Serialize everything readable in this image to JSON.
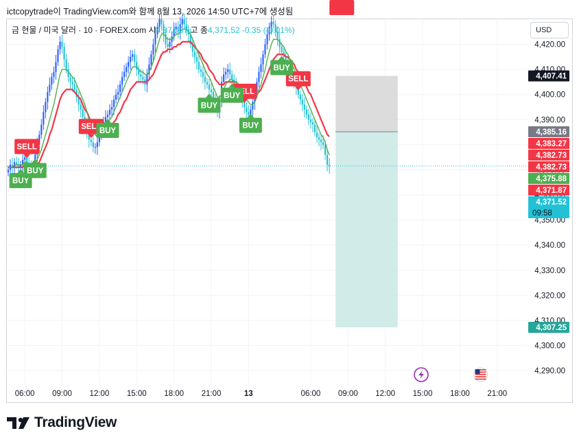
{
  "caption": "ictcopytrade이 TradingView.com와 함께 8월 13, 2026 14:50 UTC+7에 생성됨",
  "symbol": {
    "name": "금 현물 / 미국 달러 · 10 · FOREX.com",
    "open_label": "시",
    "open_value": "4,371.87",
    "high_label": "고",
    "close_label": "종",
    "close_value": "4,371.52",
    "change": "-0.35 (-0.01%)"
  },
  "currency_button": "USD",
  "branding": {
    "wordmark": "TradingView",
    "logo_icon": "tradingview-logo-icon"
  },
  "icons": {
    "flash": "lightning-icon",
    "flag": "us-flag-icon"
  },
  "colors": {
    "up": "#2962ff",
    "down": "#22c1d6",
    "ema_fast": "#4caf50",
    "ema_slow": "#f23645",
    "buy": "#4caf50",
    "sell": "#f23645",
    "stop_zone": "#d6d6d6",
    "target_zone": "#d0ebe8"
  },
  "chart_data": {
    "type": "candlestick",
    "ylim": [
      4284,
      4430
    ],
    "y_ticks": [
      "4,290.00",
      "4,300.00",
      "4,310.00",
      "4,320.00",
      "4,330.00",
      "4,340.00",
      "4,350.00",
      "4,360.00",
      "4,370.00",
      "4,380.00",
      "4,390.00",
      "4,400.00",
      "4,410.00",
      "4,420.00"
    ],
    "x_ticks": [
      {
        "label": "06:00",
        "bar": 8
      },
      {
        "label": "09:00",
        "bar": 26
      },
      {
        "label": "12:00",
        "bar": 44
      },
      {
        "label": "15:00",
        "bar": 62
      },
      {
        "label": "18:00",
        "bar": 80
      },
      {
        "label": "21:00",
        "bar": 98
      },
      {
        "label": "13",
        "bar": 116
      },
      {
        "label": "06:00",
        "bar": 146
      },
      {
        "label": "09:00",
        "bar": 164
      },
      {
        "label": "12:00",
        "bar": 182
      },
      {
        "label": "15:00",
        "bar": 200
      },
      {
        "label": "18:00",
        "bar": 218
      },
      {
        "label": "21:00",
        "bar": 236
      }
    ],
    "closes": [
      4370,
      4372,
      4371,
      4373,
      4372,
      4371,
      4372,
      4374,
      4375,
      4373,
      4371,
      4370,
      4372,
      4376,
      4380,
      4384,
      4388,
      4393,
      4397,
      4401,
      4404,
      4407,
      4409,
      4413,
      4418,
      4421,
      4419,
      4414,
      4410,
      4407,
      4405,
      4404,
      4402,
      4399,
      4396,
      4394,
      4391,
      4388,
      4385,
      4382,
      4381,
      4379,
      4379,
      4381,
      4384,
      4386,
      4389,
      4391,
      4392,
      4394,
      4395,
      4398,
      4400,
      4401,
      4404,
      4407,
      4409,
      4411,
      4413,
      4415,
      4416,
      4413,
      4410,
      4408,
      4407,
      4406,
      4404,
      4408,
      4412,
      4416,
      4420,
      4424,
      4427,
      4430,
      4428,
      4424,
      4420,
      4419,
      4421,
      4423,
      4426,
      4427,
      4425,
      4428,
      4430,
      4428,
      4426,
      4424,
      4420,
      4417,
      4415,
      4413,
      4410,
      4409,
      4407,
      4405,
      4404,
      4402,
      4401,
      4398,
      4395,
      4393,
      4398,
      4405,
      4408,
      4409,
      4410,
      4408,
      4406,
      4404,
      4403,
      4401,
      4400,
      4397,
      4395,
      4393,
      4392,
      4394,
      4397,
      4401,
      4405,
      4409,
      4412,
      4416,
      4420,
      4424,
      4427,
      4429,
      4428,
      4425,
      4422,
      4419,
      4417,
      4415,
      4413,
      4411,
      4409,
      4407,
      4405,
      4403,
      4400,
      4398,
      4396,
      4394,
      4392,
      4390,
      4389,
      4388,
      4385,
      4383,
      4382,
      4381,
      4380,
      4376,
      4372,
      4371.52
    ],
    "ema_fast": [
      4371,
      4371,
      4371,
      4372,
      4372,
      4372,
      4372,
      4372,
      4373,
      4373,
      4372,
      4372,
      4372,
      4373,
      4374,
      4376,
      4378,
      4381,
      4384,
      4387,
      4390,
      4393,
      4396,
      4400,
      4404,
      4408,
      4410,
      4410,
      4410,
      4409,
      4408,
      4407,
      4406,
      4404,
      4402,
      4400,
      4398,
      4396,
      4393,
      4390,
      4388,
      4386,
      4384,
      4383,
      4383,
      4384,
      4385,
      4387,
      4388,
      4390,
      4391,
      4393,
      4395,
      4397,
      4399,
      4401,
      4403,
      4405,
      4407,
      4409,
      4411,
      4411,
      4411,
      4410,
      4409,
      4409,
      4408,
      4408,
      4409,
      4411,
      4413,
      4416,
      4419,
      4422,
      4424,
      4424,
      4423,
      4422,
      4422,
      4422,
      4423,
      4424,
      4424,
      4425,
      4426,
      4426,
      4426,
      4425,
      4424,
      4422,
      4420,
      4418,
      4416,
      4414,
      4412,
      4410,
      4408,
      4407,
      4405,
      4403,
      4401,
      4399,
      4399,
      4400,
      4402,
      4404,
      4405,
      4406,
      4406,
      4405,
      4405,
      4404,
      4403,
      4401,
      4400,
      4398,
      4397,
      4396,
      4396,
      4397,
      4399,
      4402,
      4404,
      4407,
      4410,
      4414,
      4417,
      4420,
      4422,
      4422,
      4422,
      4421,
      4420,
      4419,
      4417,
      4416,
      4414,
      4412,
      4410,
      4408,
      4406,
      4404,
      4402,
      4400,
      4398,
      4396,
      4394,
      4392,
      4390,
      4388,
      4386,
      4384,
      4383,
      4381,
      4378,
      4375.88
    ],
    "ema_slow": [
      4371,
      4371,
      4371,
      4371,
      4371,
      4371,
      4371,
      4371,
      4372,
      4372,
      4372,
      4371,
      4371,
      4372,
      4372,
      4373,
      4375,
      4377,
      4379,
      4381,
      4384,
      4386,
      4389,
      4392,
      4395,
      4398,
      4400,
      4401,
      4402,
      4402,
      4402,
      4402,
      4401,
      4400,
      4399,
      4398,
      4396,
      4394,
      4393,
      4391,
      4389,
      4387,
      4386,
      4385,
      4384,
      4384,
      4384,
      4385,
      4386,
      4387,
      4388,
      4389,
      4390,
      4392,
      4393,
      4395,
      4397,
      4398,
      4400,
      4402,
      4403,
      4404,
      4405,
      4405,
      4405,
      4405,
      4405,
      4405,
      4406,
      4407,
      4408,
      4410,
      4412,
      4414,
      4416,
      4417,
      4417,
      4418,
      4418,
      4418,
      4419,
      4419,
      4420,
      4420,
      4421,
      4421,
      4421,
      4421,
      4421,
      4420,
      4419,
      4418,
      4417,
      4416,
      4414,
      4413,
      4412,
      4410,
      4409,
      4408,
      4406,
      4405,
      4404,
      4404,
      4404,
      4405,
      4405,
      4405,
      4405,
      4405,
      4405,
      4404,
      4404,
      4403,
      4402,
      4401,
      4400,
      4400,
      4399,
      4399,
      4400,
      4401,
      4402,
      4404,
      4406,
      4408,
      4410,
      4412,
      4414,
      4415,
      4416,
      4416,
      4416,
      4416,
      4415,
      4415,
      4414,
      4413,
      4412,
      4410,
      4409,
      4408,
      4406,
      4405,
      4403,
      4401,
      4400,
      4398,
      4396,
      4394,
      4392,
      4390,
      4388,
      4386,
      4384,
      4383.27
    ],
    "signals": [
      {
        "type": "BUY",
        "bar": 6
      },
      {
        "type": "SELL",
        "bar": 9
      },
      {
        "type": "BUY",
        "bar": 13
      },
      {
        "type": "SELL",
        "bar": 40
      },
      {
        "type": "BUY",
        "bar": 48
      },
      {
        "type": "BUY",
        "bar": 97
      },
      {
        "type": "SELL",
        "bar": 114
      },
      {
        "type": "BUY",
        "bar": 108
      },
      {
        "type": "BUY",
        "bar": 117
      },
      {
        "type": "SELL",
        "bar": 140
      },
      {
        "type": "BUY",
        "bar": 132
      },
      {
        "type": "SELL",
        "bar": 161
      }
    ],
    "position": {
      "entry": 4385.16,
      "stop": 4407.41,
      "target": 4307.25,
      "from_bar": 158,
      "to_bar": 188
    },
    "price_labels": [
      {
        "text": "4,407.41",
        "value": 4407.41,
        "color": "#131722"
      },
      {
        "text": "4,385.16",
        "value": 4385.16,
        "color": "#787b86"
      },
      {
        "text": "4,383.27",
        "value": 4383.27,
        "color": "#f23645"
      },
      {
        "text": "4,382.73",
        "value": 4382.73,
        "color": "#f23645"
      },
      {
        "text": "4,382.73",
        "value": 4382.73,
        "color": "#f23645"
      },
      {
        "text": "4,375.88",
        "value": 4375.88,
        "color": "#4caf50"
      },
      {
        "text": "4,371.87",
        "value": 4371.87,
        "color": "#f23645"
      },
      {
        "text": "4,371.52",
        "value": 4371.52,
        "color": "#22c1d6"
      },
      {
        "text": "4,307.25",
        "value": 4307.25,
        "color": "#26a69a"
      }
    ],
    "countdown": "09:58"
  }
}
